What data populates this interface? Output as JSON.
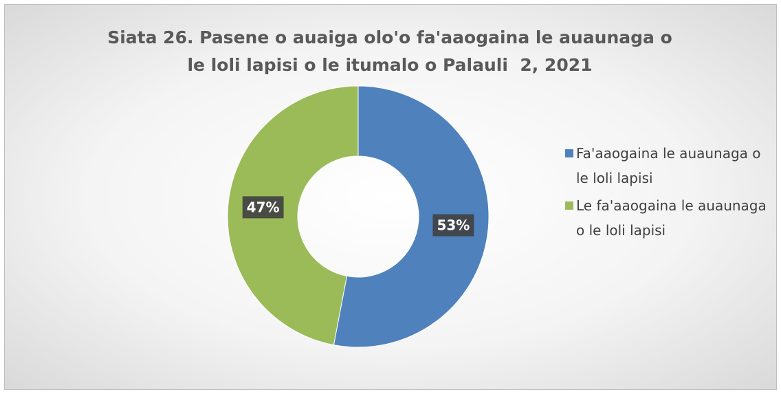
{
  "chart_data": {
    "type": "pie",
    "donut": true,
    "title": "Siata 26. Pasene o auaiga olo'o fa'aaogaina le auaunaga o le loli lapisi o le itumalo o Palauli  2, 2021",
    "categories": [
      "Fa'aaogaina le auaunaga o le loli lapisi",
      "Le fa'aaogaina le auaunaga o le loli lapisi"
    ],
    "values": [
      53,
      47
    ],
    "value_labels": [
      "53%",
      "47%"
    ],
    "colors": [
      "#4f81bd",
      "#9bbb59"
    ],
    "legend": "right"
  }
}
